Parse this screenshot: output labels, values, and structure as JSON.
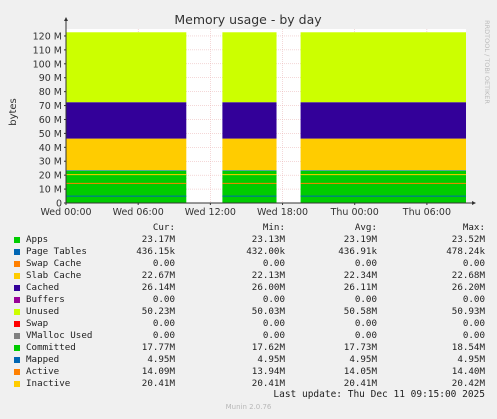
{
  "chart_data": {
    "type": "area",
    "title": "Memory usage - by day",
    "ylabel": "bytes",
    "side_label": "RRDTOOL / TOBI OETIKER",
    "ylim": [
      0,
      125
    ],
    "y_ticks": [
      "0",
      "10 M",
      "20 M",
      "30 M",
      "40 M",
      "50 M",
      "60 M",
      "70 M",
      "80 M",
      "90 M",
      "100 M",
      "110 M",
      "120 M"
    ],
    "y_tick_values": [
      0,
      10,
      20,
      30,
      40,
      50,
      60,
      70,
      80,
      90,
      100,
      110,
      120
    ],
    "x_ticks": [
      "Wed 00:00",
      "Wed 06:00",
      "Wed 12:00",
      "Wed 18:00",
      "Thu 00:00",
      "Thu 06:00"
    ],
    "segments": [
      {
        "start": "Wed 00:00",
        "end": "Wed 10:00"
      },
      {
        "start": "Wed 13:00",
        "end": "Wed 17:30"
      },
      {
        "start": "Wed 19:30",
        "end": "Thu 09:15"
      }
    ],
    "stack_units": "M",
    "stack": [
      {
        "name": "Apps",
        "color": "#00cc00",
        "value": 23.17
      },
      {
        "name": "Page Tables",
        "color": "#0066b3",
        "value": 0.436
      },
      {
        "name": "Swap Cache",
        "color": "#ff8000",
        "value": 0
      },
      {
        "name": "Slab Cache",
        "color": "#ffcc00",
        "value": 22.67
      },
      {
        "name": "Cached",
        "color": "#330099",
        "value": 26.14
      },
      {
        "name": "Buffers",
        "color": "#990099",
        "value": 0
      },
      {
        "name": "Unused",
        "color": "#ccff00",
        "value": 50.23
      },
      {
        "name": "Swap",
        "color": "#ff0000",
        "value": 0
      }
    ],
    "lines": [
      {
        "name": "Committed",
        "color": "#00cc00",
        "value": 17.77
      },
      {
        "name": "Mapped",
        "color": "#0066b3",
        "value": 4.95
      },
      {
        "name": "Active",
        "color": "#ff8000",
        "value": 14.09
      },
      {
        "name": "Inactive",
        "color": "#ffcc00",
        "value": 20.41
      }
    ]
  },
  "legend": {
    "headers": {
      "cur": "Cur:",
      "min": "Min:",
      "avg": "Avg:",
      "max": "Max:"
    },
    "rows": [
      {
        "name": "Apps",
        "color": "#00cc00",
        "cur": "23.17M",
        "min": "23.13M",
        "avg": "23.19M",
        "max": "23.52M"
      },
      {
        "name": "Page Tables",
        "color": "#0066b3",
        "cur": "436.15k",
        "min": "432.00k",
        "avg": "436.91k",
        "max": "478.24k"
      },
      {
        "name": "Swap Cache",
        "color": "#ff8000",
        "cur": "0.00",
        "min": "0.00",
        "avg": "0.00",
        "max": "0.00"
      },
      {
        "name": "Slab Cache",
        "color": "#ffcc00",
        "cur": "22.67M",
        "min": "22.13M",
        "avg": "22.34M",
        "max": "22.68M"
      },
      {
        "name": "Cached",
        "color": "#330099",
        "cur": "26.14M",
        "min": "26.00M",
        "avg": "26.11M",
        "max": "26.20M"
      },
      {
        "name": "Buffers",
        "color": "#990099",
        "cur": "0.00",
        "min": "0.00",
        "avg": "0.00",
        "max": "0.00"
      },
      {
        "name": "Unused",
        "color": "#ccff00",
        "cur": "50.23M",
        "min": "50.03M",
        "avg": "50.58M",
        "max": "50.93M"
      },
      {
        "name": "Swap",
        "color": "#ff0000",
        "cur": "0.00",
        "min": "0.00",
        "avg": "0.00",
        "max": "0.00"
      },
      {
        "name": "VMalloc Used",
        "color": "#808080",
        "cur": "0.00",
        "min": "0.00",
        "avg": "0.00",
        "max": "0.00"
      },
      {
        "name": "Committed",
        "color": "#00cc00",
        "cur": "17.77M",
        "min": "17.62M",
        "avg": "17.73M",
        "max": "18.54M"
      },
      {
        "name": "Mapped",
        "color": "#0066b3",
        "cur": "4.95M",
        "min": "4.95M",
        "avg": "4.95M",
        "max": "4.95M"
      },
      {
        "name": "Active",
        "color": "#ff8000",
        "cur": "14.09M",
        "min": "13.94M",
        "avg": "14.05M",
        "max": "14.40M"
      },
      {
        "name": "Inactive",
        "color": "#ffcc00",
        "cur": "20.41M",
        "min": "20.41M",
        "avg": "20.41M",
        "max": "20.42M"
      }
    ]
  },
  "last_update": "Last update:  Thu Dec 11 09:15:00 2025",
  "footer": "Munin 2.0.76"
}
